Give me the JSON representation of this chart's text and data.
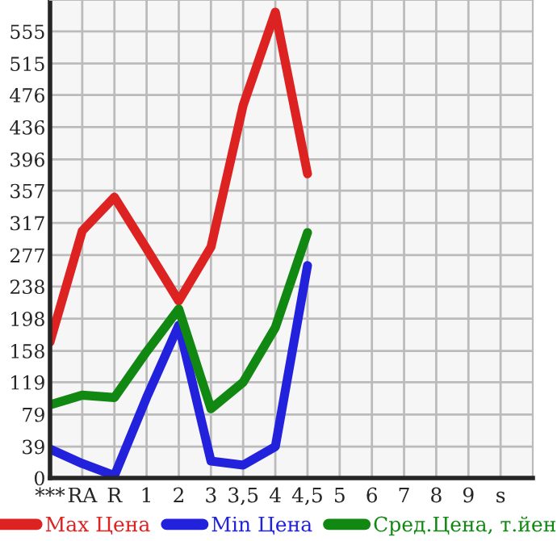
{
  "chart_data": {
    "type": "line",
    "categories": [
      "***",
      "RA",
      "R",
      "1",
      "2",
      "3",
      "3,5",
      "4",
      "4,5",
      "5",
      "6",
      "7",
      "8",
      "9",
      "s"
    ],
    "series": [
      {
        "name": "Max Цена",
        "color": "#dd2222",
        "values": [
          169,
          307,
          349,
          285,
          220,
          287,
          463,
          579,
          378,
          null,
          null,
          null,
          null,
          null,
          null
        ]
      },
      {
        "name": "Min Цена",
        "color": "#2222dd",
        "values": [
          36,
          18,
          3,
          100,
          190,
          21,
          16,
          39,
          264,
          null,
          null,
          null,
          null,
          null,
          null
        ]
      },
      {
        "name": "Сред.Цена, т.йен",
        "color": "#118811",
        "values": [
          91,
          103,
          100,
          157,
          210,
          86,
          119,
          187,
          305,
          null,
          null,
          null,
          null,
          null,
          null
        ]
      }
    ],
    "ylim": [
      0,
      594
    ],
    "yticks": [
      0,
      39,
      79,
      119,
      158,
      198,
      238,
      277,
      317,
      357,
      396,
      436,
      476,
      515,
      555
    ],
    "grid": true,
    "legend": "bottom",
    "marker": "none",
    "line_style": "solid"
  }
}
